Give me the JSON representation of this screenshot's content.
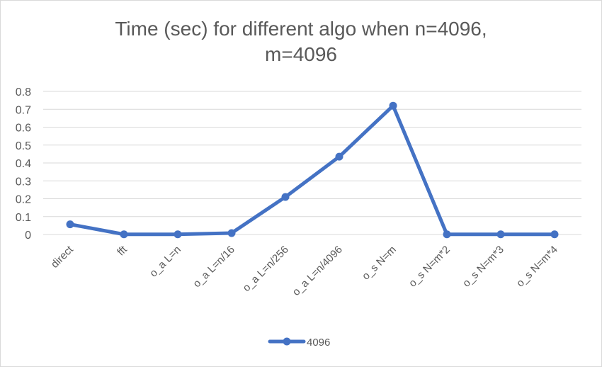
{
  "chart_data": {
    "type": "line",
    "title": "Time (sec) for different algo when n=4096, m=4096",
    "title_lines": [
      "Time (sec) for different algo when n=4096,",
      "m=4096"
    ],
    "categories": [
      "direct",
      "fft",
      "o_a L=n",
      "o_a L=n/16",
      "o_a L=n/256",
      "o_a L=n/4096",
      "o_s N=m",
      "o_s N=m*2",
      "o_s N=m*3",
      "o_s N=m*4"
    ],
    "series": [
      {
        "name": "4096",
        "color": "#4472C4",
        "values": [
          0.057,
          0.001,
          0.001,
          0.008,
          0.21,
          0.435,
          0.72,
          0.001,
          0.001,
          0.001
        ]
      }
    ],
    "ylim": [
      0,
      0.8
    ],
    "yticks": [
      "0",
      "0.1",
      "0.2",
      "0.3",
      "0.4",
      "0.5",
      "0.6",
      "0.7",
      "0.8"
    ],
    "xlabel": "",
    "ylabel": "",
    "grid": true,
    "legend_position": "bottom"
  }
}
